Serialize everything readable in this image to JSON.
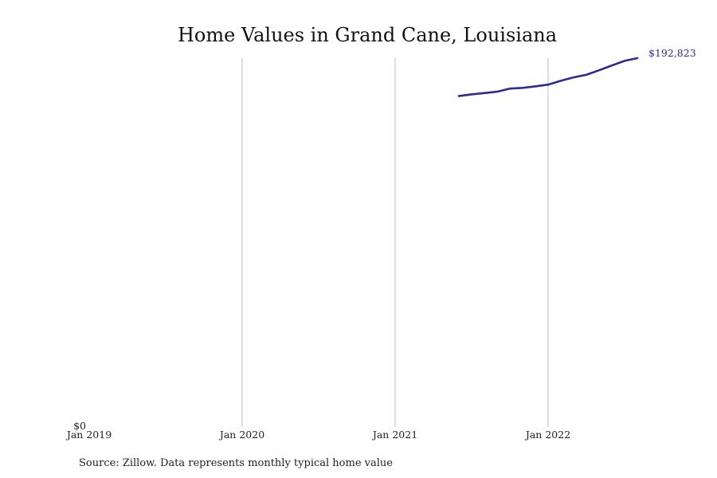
{
  "chart_data": {
    "type": "line",
    "title": "Home Values in Grand Cane, Louisiana",
    "xlabel": "",
    "ylabel": "",
    "x_ticks": [
      "Jan 2019",
      "Jan 2020",
      "Jan 2021",
      "Jan 2022"
    ],
    "y_ticks": [
      "$0"
    ],
    "ylim": [
      0,
      192823
    ],
    "xlim": [
      "2019-01",
      "2022-12"
    ],
    "grid": "vertical",
    "series": [
      {
        "color": "#2e2a8f",
        "points": [
          {
            "x": "2021-06",
            "y": 173000
          },
          {
            "x": "2021-07",
            "y": 173900
          },
          {
            "x": "2021-08",
            "y": 174600
          },
          {
            "x": "2021-09",
            "y": 175300
          },
          {
            "x": "2021-10",
            "y": 176900
          },
          {
            "x": "2021-11",
            "y": 177300
          },
          {
            "x": "2021-12",
            "y": 178100
          },
          {
            "x": "2022-01",
            "y": 179000
          },
          {
            "x": "2022-02",
            "y": 181000
          },
          {
            "x": "2022-03",
            "y": 182800
          },
          {
            "x": "2022-04",
            "y": 184100
          },
          {
            "x": "2022-05",
            "y": 186500
          },
          {
            "x": "2022-06",
            "y": 189000
          },
          {
            "x": "2022-07",
            "y": 191400
          },
          {
            "x": "2022-08",
            "y": 192823
          }
        ],
        "end_label": "$192,823"
      }
    ]
  },
  "source_note": "Source: Zillow. Data represents monthly typical home value"
}
